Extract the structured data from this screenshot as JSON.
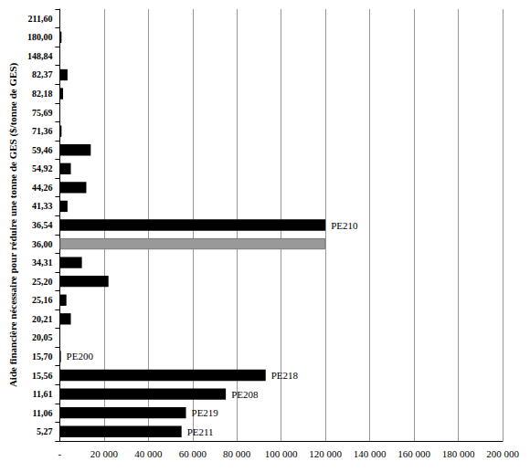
{
  "chart_data": {
    "type": "bar",
    "orientation": "horizontal",
    "y_label": "Aide financière nécessaire pour réduire une tonne de GES ($/tonne de GES)",
    "categories": [
      "5,27",
      "11,06",
      "11,61",
      "15,56",
      "15,70",
      "20,05",
      "20,21",
      "25,16",
      "25,20",
      "34,31",
      "36,00",
      "36,54",
      "41,33",
      "44,26",
      "54,92",
      "59,46",
      "71,36",
      "75,69",
      "82,18",
      "82,37",
      "148,84",
      "180,00",
      "211,60"
    ],
    "values": [
      55000,
      57000,
      75000,
      93000,
      500,
      0,
      5000,
      3000,
      22000,
      10000,
      120000,
      120000,
      3500,
      12000,
      5000,
      14000,
      800,
      0,
      1500,
      3500,
      0,
      800,
      0
    ],
    "colors": [
      "#000000",
      "#000000",
      "#000000",
      "#000000",
      "#000000",
      "#000000",
      "#000000",
      "#000000",
      "#000000",
      "#000000",
      "#999999",
      "#000000",
      "#000000",
      "#000000",
      "#000000",
      "#000000",
      "#000000",
      "#000000",
      "#000000",
      "#000000",
      "#000000",
      "#000000",
      "#000000"
    ],
    "annotations": [
      {
        "category": "5,27",
        "text": "PE211"
      },
      {
        "category": "11,06",
        "text": "PE219"
      },
      {
        "category": "11,61",
        "text": "PE208"
      },
      {
        "category": "15,56",
        "text": "PE218"
      },
      {
        "category": "15,70",
        "text": "PE200"
      },
      {
        "category": "36,54",
        "text": "PE210"
      }
    ],
    "xlim": [
      0,
      200000
    ],
    "xticks": [
      {
        "value": 0,
        "label": "-"
      },
      {
        "value": 20000,
        "label": "20 000"
      },
      {
        "value": 40000,
        "label": "40 000"
      },
      {
        "value": 60000,
        "label": "60 000"
      },
      {
        "value": 80000,
        "label": "80 000"
      },
      {
        "value": 100000,
        "label": "100 000"
      },
      {
        "value": 120000,
        "label": "120 000"
      },
      {
        "value": 140000,
        "label": "140 000"
      },
      {
        "value": 160000,
        "label": "160 000"
      },
      {
        "value": 180000,
        "label": "180 000"
      },
      {
        "value": 200000,
        "label": "200 000"
      }
    ],
    "grid": true
  }
}
